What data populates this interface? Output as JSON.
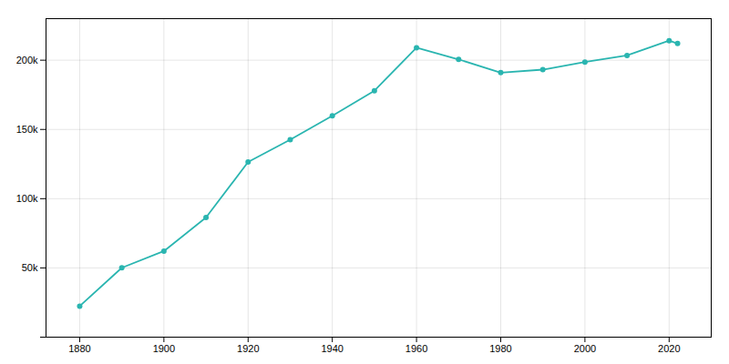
{
  "chart_data": {
    "type": "line",
    "x": [
      1880,
      1890,
      1900,
      1910,
      1920,
      1930,
      1940,
      1950,
      1960,
      1970,
      1980,
      1990,
      2000,
      2010,
      2020,
      2022
    ],
    "values": [
      22408,
      50093,
      62139,
      86368,
      126468,
      142559,
      159819,
      177965,
      208982,
      200587,
      191003,
      193187,
      198682,
      203433,
      214133,
      212031
    ],
    "color": "#2ab5b0",
    "marker": "circle",
    "xlim": [
      1872,
      2030
    ],
    "ylim": [
      0,
      230000
    ],
    "xticks": [
      1880,
      1900,
      1920,
      1940,
      1960,
      1980,
      2000,
      2020
    ],
    "yticks": [
      {
        "value": 0,
        "label": ""
      },
      {
        "value": 50000,
        "label": "50k"
      },
      {
        "value": 100000,
        "label": "100k"
      },
      {
        "value": 150000,
        "label": "150k"
      },
      {
        "value": 200000,
        "label": "200k"
      }
    ],
    "grid": true
  }
}
